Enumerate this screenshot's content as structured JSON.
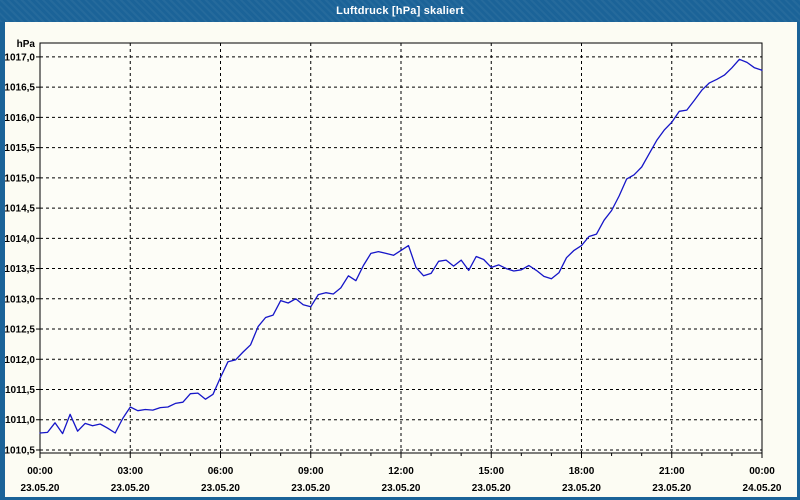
{
  "window": {
    "title": "Luftdruck [hPa] skaliert"
  },
  "colors": {
    "titlebar": "#1b6398",
    "frame": "#1b6398",
    "content_bg": "#fcfcf3",
    "plot_bg": "#fdfdf7",
    "line": "#1616c8",
    "grid": "#000000",
    "text": "#000000",
    "title_text": "#ffffff"
  },
  "chart_data": {
    "type": "line",
    "title": "Luftdruck [hPa] skaliert",
    "unit_label": "hPa",
    "series_name": "Luftdruck",
    "grid": "dashed",
    "legend": "none",
    "xlim_hours": [
      0,
      24
    ],
    "ylim": [
      1010.45,
      1017.23
    ],
    "x_start_hour": 0,
    "x_step_hours": 0.25,
    "y_ticks": [
      {
        "value": 1010.5,
        "label": "1010,5"
      },
      {
        "value": 1011.0,
        "label": "1011,0"
      },
      {
        "value": 1011.5,
        "label": "1011,5"
      },
      {
        "value": 1012.0,
        "label": "1012,0"
      },
      {
        "value": 1012.5,
        "label": "1012,5"
      },
      {
        "value": 1013.0,
        "label": "1013,0"
      },
      {
        "value": 1013.5,
        "label": "1013,5"
      },
      {
        "value": 1014.0,
        "label": "1014,0"
      },
      {
        "value": 1014.5,
        "label": "1014,5"
      },
      {
        "value": 1015.0,
        "label": "1015,0"
      },
      {
        "value": 1015.5,
        "label": "1015,5"
      },
      {
        "value": 1016.0,
        "label": "1016,0"
      },
      {
        "value": 1016.5,
        "label": "1016,5"
      },
      {
        "value": 1017.0,
        "label": "1017,0"
      }
    ],
    "x_ticks": [
      {
        "hour": 0,
        "time": "00:00",
        "date": "23.05.20"
      },
      {
        "hour": 3,
        "time": "03:00",
        "date": "23.05.20"
      },
      {
        "hour": 6,
        "time": "06:00",
        "date": "23.05.20"
      },
      {
        "hour": 9,
        "time": "09:00",
        "date": "23.05.20"
      },
      {
        "hour": 12,
        "time": "12:00",
        "date": "23.05.20"
      },
      {
        "hour": 15,
        "time": "15:00",
        "date": "23.05.20"
      },
      {
        "hour": 18,
        "time": "18:00",
        "date": "23.05.20"
      },
      {
        "hour": 21,
        "time": "21:00",
        "date": "23.05.20"
      },
      {
        "hour": 24,
        "time": "00:00",
        "date": "24.05.20"
      }
    ],
    "values": [
      1010.78,
      1010.79,
      1010.95,
      1010.77,
      1011.09,
      1010.81,
      1010.94,
      1010.9,
      1010.93,
      1010.86,
      1010.78,
      1011.02,
      1011.21,
      1011.15,
      1011.17,
      1011.16,
      1011.2,
      1011.21,
      1011.27,
      1011.29,
      1011.43,
      1011.44,
      1011.34,
      1011.42,
      1011.7,
      1011.96,
      1011.99,
      1012.12,
      1012.24,
      1012.54,
      1012.69,
      1012.73,
      1012.97,
      1012.93,
      1013.0,
      1012.9,
      1012.87,
      1013.07,
      1013.1,
      1013.08,
      1013.18,
      1013.38,
      1013.3,
      1013.55,
      1013.75,
      1013.78,
      1013.75,
      1013.72,
      1013.8,
      1013.88,
      1013.52,
      1013.38,
      1013.42,
      1013.62,
      1013.64,
      1013.54,
      1013.64,
      1013.47,
      1013.7,
      1013.65,
      1013.52,
      1013.56,
      1013.5,
      1013.46,
      1013.48,
      1013.55,
      1013.47,
      1013.37,
      1013.33,
      1013.43,
      1013.68,
      1013.8,
      1013.88,
      1014.03,
      1014.07,
      1014.3,
      1014.46,
      1014.7,
      1014.98,
      1015.05,
      1015.18,
      1015.4,
      1015.62,
      1015.79,
      1015.92,
      1016.1,
      1016.12,
      1016.28,
      1016.45,
      1016.57,
      1016.63,
      1016.7,
      1016.82,
      1016.96,
      1016.91,
      1016.82,
      1016.78
    ]
  }
}
